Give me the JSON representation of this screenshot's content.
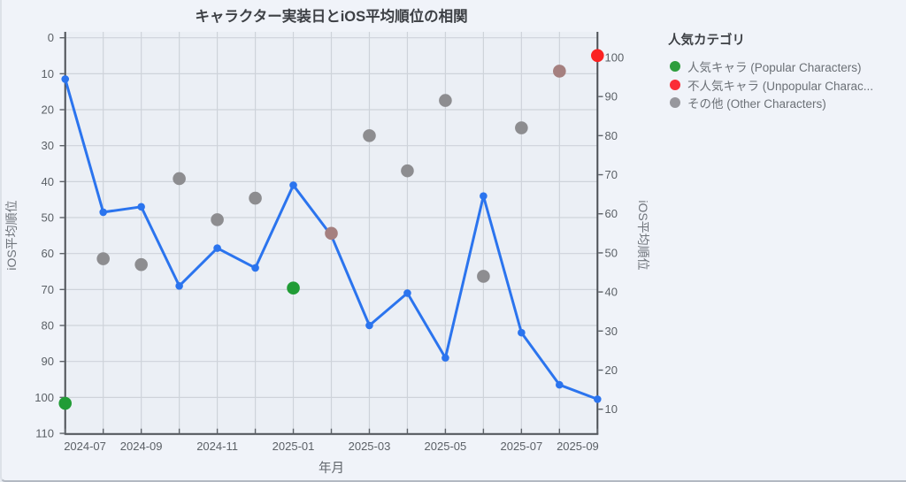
{
  "title": "キャラクター実装日とiOS平均順位の相関",
  "legend": {
    "title": "人気カテゴリ",
    "items": [
      {
        "id": "popular",
        "label": "人気キャラ (Popular Characters)",
        "color": "#2d9d3d"
      },
      {
        "id": "unpopular",
        "label": "不人気キャラ (Unpopular Charac...",
        "color": "#fb2c36"
      },
      {
        "id": "other",
        "label": "その他 (Other Characters)",
        "color": "#97979d"
      }
    ]
  },
  "chart_data": {
    "type": "line+scatter",
    "title": "キャラクター実装日とiOS平均順位の相関",
    "xlabel": "年月",
    "ylabel_left": "iOS平均順位",
    "ylabel_right": "iOS平均順位",
    "x": [
      "2024-07",
      "2024-08",
      "2024-09",
      "2024-10",
      "2024-11",
      "2024-12",
      "2025-01",
      "2025-02",
      "2025-03",
      "2025-04",
      "2025-05",
      "2025-06",
      "2025-07",
      "2025-08",
      "2025-09"
    ],
    "x_tick_labels": [
      "2024-07",
      "2024-09",
      "2024-11",
      "2025-01",
      "2025-03",
      "2025-05",
      "2025-07",
      "2025-09"
    ],
    "left_axis": {
      "label": "iOS平均順位",
      "min": 0,
      "max": 110,
      "step": 10,
      "inverted": true
    },
    "right_axis": {
      "label": "iOS平均順位",
      "min": 10,
      "max": 100,
      "step": 10,
      "high_at_top": true
    },
    "grid": true,
    "legend_position": "right",
    "values": [
      11.5,
      48.5,
      47,
      69,
      58.5,
      64,
      41,
      55,
      80,
      71,
      89,
      44,
      82,
      96.5,
      100.5
    ],
    "series": [
      {
        "type": "line",
        "axis": "left",
        "color": "#2b74ee"
      },
      {
        "type": "scatter",
        "axis": "right",
        "category_per_point": [
          "popular",
          "other",
          "other",
          "other",
          "other",
          "other",
          "popular",
          "unpopular_muted",
          "other",
          "other",
          "other",
          "other",
          "other",
          "unpopular_muted",
          "unpopular"
        ]
      }
    ],
    "category_colors": {
      "popular": "#219c36",
      "unpopular": "#fb2222",
      "unpopular_muted": "#a5807f",
      "other": "#8d8d90"
    }
  }
}
